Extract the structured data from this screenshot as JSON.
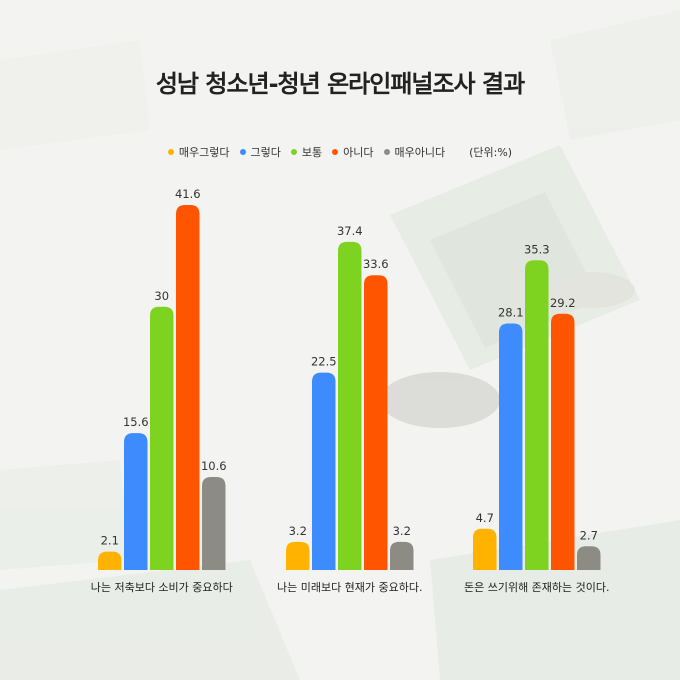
{
  "chart_data": {
    "type": "bar",
    "title": "성남 청소년-청년 온라인패널조사 결과",
    "unit": "(단위:%)",
    "categories": [
      "나는 저축보다 소비가 중요하다",
      "나는 미래보다 현재가 중요하다.",
      "돈은 쓰기위해 존재하는 것이다."
    ],
    "series": [
      {
        "name": "매우그렇다",
        "color": "#ffb300",
        "values": [
          2.1,
          3.2,
          4.7
        ]
      },
      {
        "name": "그렇다",
        "color": "#3d8bfd",
        "values": [
          15.6,
          22.5,
          28.1
        ]
      },
      {
        "name": "보통",
        "color": "#7ed321",
        "values": [
          30,
          37.4,
          35.3
        ]
      },
      {
        "name": "아니다",
        "color": "#ff5500",
        "values": [
          41.6,
          33.6,
          29.2
        ]
      },
      {
        "name": "매우아니다",
        "color": "#8c8c84",
        "values": [
          10.6,
          3.2,
          2.7
        ]
      }
    ],
    "ylim": [
      0,
      41.6
    ],
    "legend_position": "top-center",
    "grid": false
  }
}
